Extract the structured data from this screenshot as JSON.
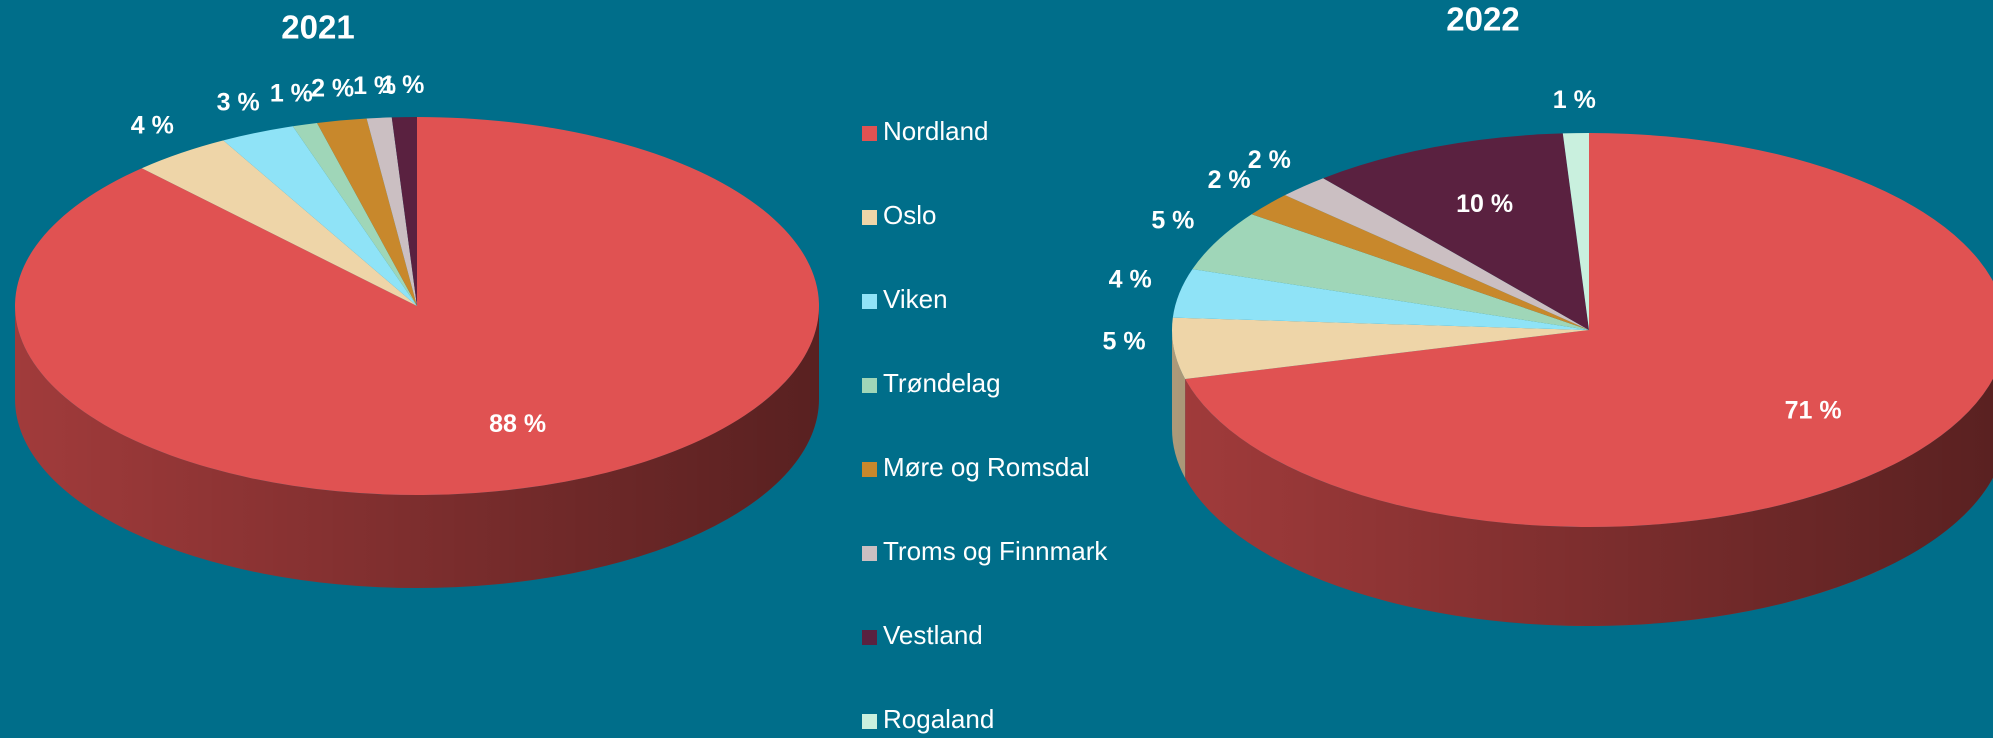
{
  "legend": {
    "categories": [
      "Nordland",
      "Oslo",
      "Viken",
      "Trøndelag",
      "Møre og Romsdal",
      "Troms og Finnmark",
      "Vestland",
      "Rogaland"
    ],
    "colors": [
      "#e05252",
      "#eed5a8",
      "#8fe3f7",
      "#9fd6b8",
      "#c8882c",
      "#cbbfc2",
      "#5a2140",
      "#c9f0de"
    ]
  },
  "chart_data": [
    {
      "type": "pie",
      "title": "2021",
      "values": [
        88,
        4,
        3,
        1,
        2,
        1,
        1,
        0
      ],
      "value_labels": [
        "88 %",
        "4 %",
        "3 %",
        "1 %",
        "2 %",
        "1 %",
        "1 %",
        null
      ]
    },
    {
      "type": "pie",
      "title": "2022",
      "values": [
        71,
        5,
        4,
        5,
        2,
        2,
        10,
        1
      ],
      "value_labels": [
        "71 %",
        "5 %",
        "4 %",
        "5 %",
        "2 %",
        "2 %",
        "10 %",
        "1 %"
      ]
    }
  ]
}
